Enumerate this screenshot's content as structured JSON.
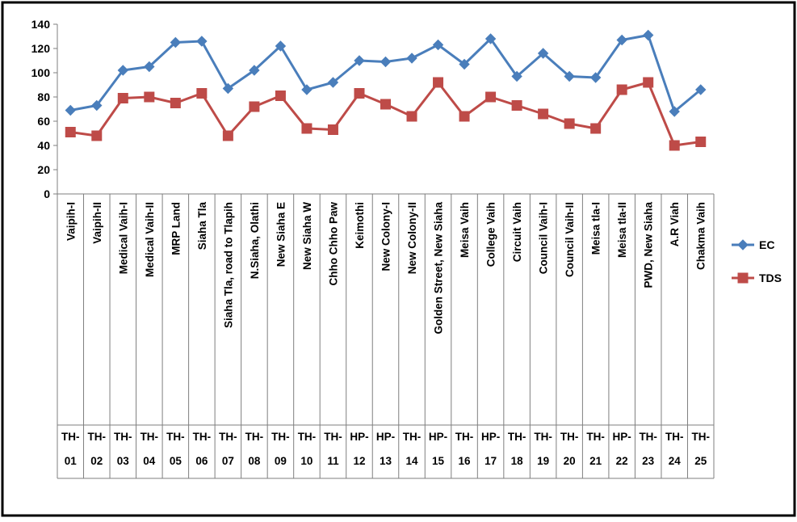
{
  "chart_data": {
    "type": "line",
    "title": "",
    "xlabel": "",
    "ylabel": "",
    "ylim": [
      0,
      140
    ],
    "yticks": [
      0,
      20,
      40,
      60,
      80,
      100,
      120,
      140
    ],
    "grid": false,
    "legend_position": "right",
    "categories": [
      "Vaipih-I",
      "Vaipih-II",
      "Medical Vaih-I",
      "Medical Vaih-II",
      "MRP Land",
      "Siaha Tla",
      "Siaha Tla, road to Tlapih",
      "N.Siaha, Olathi",
      "New Siaha E",
      "New Siaha W",
      "Chho Chho Paw",
      "Keimothi",
      "New Colony-I",
      "New Colony-II",
      "Golden Street, New Siaha",
      "Meisa Vaih",
      "College Vaih",
      "Circuit Vaih",
      "Council Vaih-I",
      "Council Vaih-II",
      "Meisa tla-I",
      "Meisa tla-II",
      "PWD, New Siaha",
      "A.R Viah",
      "Chakma Vaih"
    ],
    "codes": [
      [
        "TH-",
        "01"
      ],
      [
        "TH-",
        "02"
      ],
      [
        "TH-",
        "03"
      ],
      [
        "TH-",
        "04"
      ],
      [
        "TH-",
        "05"
      ],
      [
        "TH-",
        "06"
      ],
      [
        "TH-",
        "07"
      ],
      [
        "TH-",
        "08"
      ],
      [
        "TH-",
        "09"
      ],
      [
        "TH-",
        "10"
      ],
      [
        "TH-",
        "11"
      ],
      [
        "HP-",
        "12"
      ],
      [
        "HP-",
        "13"
      ],
      [
        "TH-",
        "14"
      ],
      [
        "HP-",
        "15"
      ],
      [
        "TH-",
        "16"
      ],
      [
        "HP-",
        "17"
      ],
      [
        "TH-",
        "18"
      ],
      [
        "TH-",
        "19"
      ],
      [
        "TH-",
        "20"
      ],
      [
        "TH-",
        "21"
      ],
      [
        "HP-",
        "22"
      ],
      [
        "TH-",
        "23"
      ],
      [
        "TH-",
        "24"
      ],
      [
        "TH-",
        "25"
      ]
    ],
    "series": [
      {
        "name": "EC",
        "color": "#4a7ebb",
        "marker": "diamond",
        "values": [
          69,
          73,
          102,
          105,
          125,
          126,
          87,
          102,
          122,
          86,
          92,
          110,
          109,
          112,
          123,
          107,
          128,
          97,
          116,
          97,
          96,
          127,
          131,
          68,
          86
        ]
      },
      {
        "name": "TDS",
        "color": "#be4b48",
        "marker": "square",
        "values": [
          51,
          48,
          79,
          80,
          75,
          83,
          48,
          72,
          81,
          54,
          53,
          83,
          74,
          64,
          92,
          64,
          80,
          73,
          66,
          58,
          54,
          86,
          92,
          40,
          43
        ]
      }
    ]
  }
}
